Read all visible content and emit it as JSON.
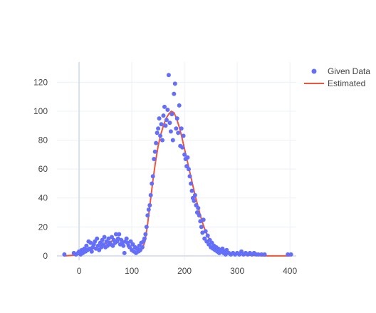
{
  "colors": {
    "background": "#ffffff",
    "grid": "#ebf0f8",
    "zeroline": "#d9e1ec",
    "tick_text": "#444444",
    "given_data": "#636efa",
    "estimated": "#ef553b"
  },
  "chart_data": {
    "type": "scatter",
    "grid": true,
    "legend_position": "top-right",
    "xlim": [
      -42,
      412
    ],
    "ylim": [
      -3,
      134
    ],
    "x_ticks": [
      0,
      100,
      200,
      300,
      400
    ],
    "y_ticks": [
      0,
      20,
      40,
      60,
      80,
      100,
      120
    ],
    "series": [
      {
        "name": "Given Data",
        "mode": "markers",
        "color": "#636efa",
        "points": [
          [
            -28,
            1
          ],
          [
            -10,
            2
          ],
          [
            -6,
            1
          ],
          [
            -2,
            2
          ],
          [
            0,
            3
          ],
          [
            3,
            1
          ],
          [
            5,
            4
          ],
          [
            7,
            2
          ],
          [
            10,
            5
          ],
          [
            12,
            3
          ],
          [
            14,
            7
          ],
          [
            16,
            4
          ],
          [
            18,
            10
          ],
          [
            20,
            5
          ],
          [
            22,
            9
          ],
          [
            24,
            3
          ],
          [
            26,
            6
          ],
          [
            28,
            8
          ],
          [
            30,
            10
          ],
          [
            32,
            5
          ],
          [
            34,
            12
          ],
          [
            36,
            7
          ],
          [
            38,
            4
          ],
          [
            40,
            9
          ],
          [
            42,
            6
          ],
          [
            44,
            11
          ],
          [
            46,
            8
          ],
          [
            48,
            13
          ],
          [
            50,
            6
          ],
          [
            52,
            10
          ],
          [
            54,
            7
          ],
          [
            56,
            12
          ],
          [
            58,
            9
          ],
          [
            60,
            8
          ],
          [
            62,
            13
          ],
          [
            64,
            7
          ],
          [
            66,
            11
          ],
          [
            68,
            9
          ],
          [
            70,
            15
          ],
          [
            72,
            10
          ],
          [
            74,
            12
          ],
          [
            76,
            15
          ],
          [
            78,
            8
          ],
          [
            80,
            11
          ],
          [
            82,
            9
          ],
          [
            84,
            7
          ],
          [
            86,
            2
          ],
          [
            88,
            10
          ],
          [
            90,
            12
          ],
          [
            92,
            9
          ],
          [
            94,
            7
          ],
          [
            96,
            6
          ],
          [
            98,
            10
          ],
          [
            100,
            4
          ],
          [
            102,
            8
          ],
          [
            104,
            3
          ],
          [
            106,
            6
          ],
          [
            108,
            2
          ],
          [
            110,
            5
          ],
          [
            112,
            3
          ],
          [
            114,
            7
          ],
          [
            116,
            4
          ],
          [
            118,
            9
          ],
          [
            120,
            6
          ],
          [
            122,
            10
          ],
          [
            124,
            12
          ],
          [
            126,
            15
          ],
          [
            128,
            20
          ],
          [
            130,
            28
          ],
          [
            132,
            32
          ],
          [
            134,
            35
          ],
          [
            136,
            42
          ],
          [
            138,
            50
          ],
          [
            140,
            55
          ],
          [
            142,
            67
          ],
          [
            144,
            72
          ],
          [
            146,
            78
          ],
          [
            148,
            85
          ],
          [
            150,
            88
          ],
          [
            152,
            95
          ],
          [
            154,
            83
          ],
          [
            156,
            91
          ],
          [
            158,
            80
          ],
          [
            160,
            97
          ],
          [
            162,
            103
          ],
          [
            164,
            90
          ],
          [
            166,
            94
          ],
          [
            168,
            101
          ],
          [
            170,
            125
          ],
          [
            172,
            92
          ],
          [
            174,
            86
          ],
          [
            176,
            98
          ],
          [
            178,
            80
          ],
          [
            180,
            112
          ],
          [
            182,
            119
          ],
          [
            184,
            88
          ],
          [
            186,
            95
          ],
          [
            188,
            85
          ],
          [
            190,
            104
          ],
          [
            192,
            76
          ],
          [
            194,
            88
          ],
          [
            196,
            75
          ],
          [
            198,
            83
          ],
          [
            200,
            70
          ],
          [
            202,
            67
          ],
          [
            204,
            62
          ],
          [
            206,
            68
          ],
          [
            208,
            60
          ],
          [
            210,
            55
          ],
          [
            212,
            50
          ],
          [
            214,
            45
          ],
          [
            216,
            40
          ],
          [
            218,
            38
          ],
          [
            220,
            42
          ],
          [
            222,
            35
          ],
          [
            224,
            30
          ],
          [
            226,
            33
          ],
          [
            228,
            28
          ],
          [
            230,
            24
          ],
          [
            232,
            20
          ],
          [
            234,
            16
          ],
          [
            236,
            25
          ],
          [
            238,
            12
          ],
          [
            240,
            17
          ],
          [
            242,
            10
          ],
          [
            244,
            14
          ],
          [
            246,
            8
          ],
          [
            248,
            11
          ],
          [
            250,
            6
          ],
          [
            252,
            9
          ],
          [
            254,
            5
          ],
          [
            256,
            7
          ],
          [
            258,
            4
          ],
          [
            260,
            6
          ],
          [
            262,
            3
          ],
          [
            264,
            5
          ],
          [
            266,
            2
          ],
          [
            268,
            4
          ],
          [
            270,
            3
          ],
          [
            272,
            5
          ],
          [
            274,
            2
          ],
          [
            276,
            3
          ],
          [
            278,
            1
          ],
          [
            280,
            4
          ],
          [
            284,
            2
          ],
          [
            288,
            1
          ],
          [
            292,
            2
          ],
          [
            296,
            1
          ],
          [
            300,
            2
          ],
          [
            304,
            1
          ],
          [
            308,
            3
          ],
          [
            312,
            1
          ],
          [
            316,
            2
          ],
          [
            320,
            1
          ],
          [
            324,
            2
          ],
          [
            328,
            1
          ],
          [
            332,
            2
          ],
          [
            336,
            1
          ],
          [
            340,
            1
          ],
          [
            346,
            1
          ],
          [
            352,
            1
          ],
          [
            396,
            1
          ],
          [
            402,
            1
          ]
        ]
      },
      {
        "name": "Estimated",
        "mode": "lines",
        "color": "#ef553b",
        "points": [
          [
            -28,
            0
          ],
          [
            -10,
            0.5
          ],
          [
            0,
            1
          ],
          [
            10,
            2
          ],
          [
            20,
            4
          ],
          [
            30,
            5.5
          ],
          [
            40,
            7
          ],
          [
            50,
            8.5
          ],
          [
            60,
            10
          ],
          [
            70,
            11
          ],
          [
            75,
            11.5
          ],
          [
            80,
            11
          ],
          [
            90,
            9
          ],
          [
            100,
            5
          ],
          [
            105,
            3
          ],
          [
            110,
            2
          ],
          [
            115,
            2.5
          ],
          [
            120,
            5
          ],
          [
            125,
            10
          ],
          [
            130,
            22
          ],
          [
            135,
            37
          ],
          [
            140,
            52
          ],
          [
            145,
            65
          ],
          [
            150,
            76
          ],
          [
            155,
            84
          ],
          [
            160,
            90
          ],
          [
            165,
            95
          ],
          [
            170,
            98
          ],
          [
            175,
            100
          ],
          [
            180,
            99
          ],
          [
            185,
            95
          ],
          [
            190,
            89
          ],
          [
            195,
            82
          ],
          [
            200,
            74
          ],
          [
            205,
            66
          ],
          [
            210,
            58
          ],
          [
            215,
            50
          ],
          [
            220,
            42
          ],
          [
            225,
            35
          ],
          [
            230,
            28
          ],
          [
            235,
            22
          ],
          [
            240,
            17
          ],
          [
            245,
            13
          ],
          [
            250,
            10
          ],
          [
            260,
            6
          ],
          [
            270,
            4
          ],
          [
            280,
            2.5
          ],
          [
            290,
            1.5
          ],
          [
            300,
            1
          ],
          [
            320,
            0.5
          ],
          [
            350,
            0
          ],
          [
            400,
            0
          ]
        ]
      }
    ]
  }
}
